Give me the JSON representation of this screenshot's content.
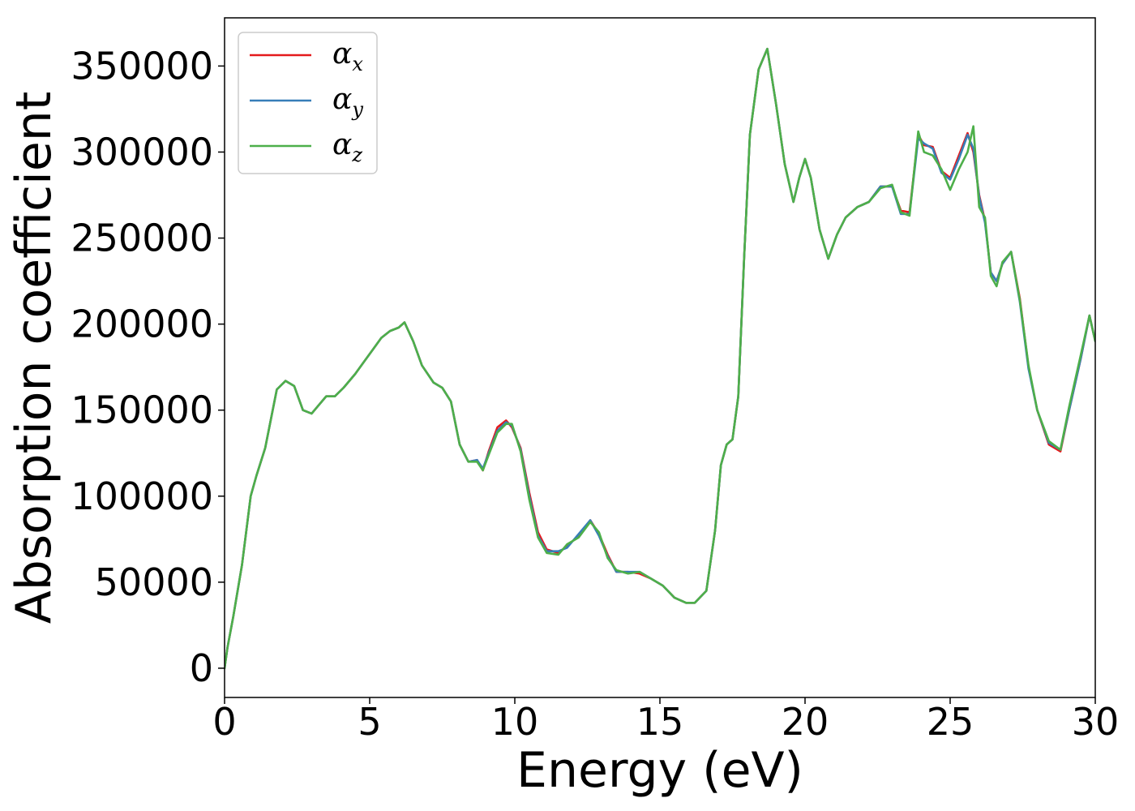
{
  "chart_data": {
    "type": "line",
    "title": "",
    "xlabel": "Energy (eV)",
    "ylabel": "Absorption coefficient",
    "xlim": [
      0,
      30
    ],
    "ylim": [
      -17000,
      378000
    ],
    "xticks": [
      0,
      5,
      10,
      15,
      20,
      25,
      30
    ],
    "yticks": [
      0,
      50000,
      100000,
      150000,
      200000,
      250000,
      300000,
      350000
    ],
    "grid": false,
    "legend_position": "top-left",
    "series": [
      {
        "name": "α_x",
        "legend_symbol": "α",
        "legend_sub": "x",
        "color": "#e41a1c",
        "x": [
          0,
          0.1,
          0.3,
          0.6,
          0.9,
          1.1,
          1.4,
          1.8,
          2.1,
          2.4,
          2.7,
          3.0,
          3.2,
          3.5,
          3.8,
          4.1,
          4.5,
          4.8,
          5.1,
          5.4,
          5.7,
          6.0,
          6.2,
          6.5,
          6.8,
          7.2,
          7.5,
          7.8,
          8.1,
          8.4,
          8.7,
          8.9,
          9.1,
          9.4,
          9.7,
          9.9,
          10.2,
          10.5,
          10.8,
          11.1,
          11.5,
          11.8,
          12.2,
          12.6,
          12.9,
          13.2,
          13.5,
          13.9,
          14.3,
          14.7,
          15.1,
          15.5,
          15.9,
          16.2,
          16.6,
          16.9,
          17.1,
          17.3,
          17.5,
          17.7,
          17.9,
          18.1,
          18.4,
          18.7,
          19.0,
          19.3,
          19.6,
          19.8,
          20.0,
          20.2,
          20.5,
          20.8,
          21.1,
          21.4,
          21.8,
          22.2,
          22.6,
          23.0,
          23.3,
          23.6,
          23.9,
          24.1,
          24.4,
          24.7,
          25.0,
          25.3,
          25.6,
          25.8,
          26.0,
          26.2,
          26.4,
          26.6,
          26.8,
          27.1,
          27.4,
          27.7,
          28.0,
          28.4,
          28.8,
          29.1,
          29.5,
          29.8,
          30.0
        ],
        "y": [
          0,
          12000,
          30000,
          60000,
          100000,
          112000,
          128000,
          162000,
          167000,
          164000,
          150000,
          148000,
          152000,
          158000,
          158000,
          163000,
          171000,
          178000,
          185000,
          192000,
          196000,
          198000,
          201000,
          190000,
          176000,
          166000,
          163000,
          155000,
          130000,
          120000,
          121000,
          115000,
          126000,
          140000,
          144000,
          140000,
          128000,
          102000,
          79000,
          69000,
          67000,
          71000,
          77000,
          86000,
          78000,
          66000,
          56000,
          56000,
          55000,
          52000,
          48000,
          41000,
          38000,
          38000,
          45000,
          80000,
          118000,
          130000,
          133000,
          158000,
          238000,
          310000,
          348000,
          360000,
          328000,
          293000,
          271000,
          285000,
          296000,
          285000,
          255000,
          238000,
          252000,
          262000,
          268000,
          271000,
          280000,
          280000,
          266000,
          265000,
          310000,
          304000,
          303000,
          289000,
          285000,
          298000,
          311000,
          300000,
          275000,
          260000,
          230000,
          225000,
          235000,
          242000,
          215000,
          175000,
          150000,
          130000,
          126000,
          150000,
          180000,
          205000,
          190000
        ]
      },
      {
        "name": "α_y",
        "legend_symbol": "α",
        "legend_sub": "y",
        "color": "#377eb8",
        "x": [
          0,
          0.1,
          0.3,
          0.6,
          0.9,
          1.1,
          1.4,
          1.8,
          2.1,
          2.4,
          2.7,
          3.0,
          3.2,
          3.5,
          3.8,
          4.1,
          4.5,
          4.8,
          5.1,
          5.4,
          5.7,
          6.0,
          6.2,
          6.5,
          6.8,
          7.2,
          7.5,
          7.8,
          8.1,
          8.4,
          8.7,
          8.9,
          9.1,
          9.4,
          9.7,
          9.9,
          10.2,
          10.5,
          10.8,
          11.1,
          11.5,
          11.8,
          12.2,
          12.6,
          12.9,
          13.2,
          13.5,
          13.9,
          14.3,
          14.7,
          15.1,
          15.5,
          15.9,
          16.2,
          16.6,
          16.9,
          17.1,
          17.3,
          17.5,
          17.7,
          17.9,
          18.1,
          18.4,
          18.7,
          19.0,
          19.3,
          19.6,
          19.8,
          20.0,
          20.2,
          20.5,
          20.8,
          21.1,
          21.4,
          21.8,
          22.2,
          22.6,
          23.0,
          23.3,
          23.6,
          23.9,
          24.1,
          24.4,
          24.7,
          25.0,
          25.3,
          25.6,
          25.8,
          26.0,
          26.2,
          26.4,
          26.6,
          26.8,
          27.1,
          27.4,
          27.7,
          28.0,
          28.4,
          28.8,
          29.1,
          29.5,
          29.8,
          30.0
        ],
        "y": [
          0,
          12000,
          30000,
          60000,
          100000,
          112000,
          128000,
          162000,
          167000,
          164000,
          150000,
          148000,
          152000,
          158000,
          158000,
          163000,
          171000,
          178000,
          185000,
          192000,
          196000,
          198000,
          201000,
          190000,
          176000,
          166000,
          163000,
          155000,
          130000,
          120000,
          121000,
          116000,
          125000,
          138000,
          143000,
          141000,
          127000,
          100000,
          77000,
          68000,
          68000,
          70000,
          78000,
          86000,
          77000,
          65000,
          56000,
          56000,
          56000,
          52000,
          48000,
          41000,
          38000,
          38000,
          45000,
          80000,
          118000,
          130000,
          133000,
          158000,
          238000,
          310000,
          348000,
          360000,
          328000,
          293000,
          271000,
          285000,
          296000,
          285000,
          255000,
          238000,
          252000,
          262000,
          268000,
          271000,
          280000,
          280000,
          264000,
          264000,
          308000,
          305000,
          302000,
          288000,
          284000,
          296000,
          310000,
          302000,
          274000,
          259000,
          230000,
          225000,
          235000,
          242000,
          213000,
          174000,
          150000,
          131000,
          127000,
          150000,
          180000,
          205000,
          190000
        ]
      },
      {
        "name": "α_z",
        "legend_symbol": "α",
        "legend_sub": "z",
        "color": "#4daf4a",
        "x": [
          0,
          0.1,
          0.3,
          0.6,
          0.9,
          1.1,
          1.4,
          1.8,
          2.1,
          2.4,
          2.7,
          3.0,
          3.2,
          3.5,
          3.8,
          4.1,
          4.5,
          4.8,
          5.1,
          5.4,
          5.7,
          6.0,
          6.2,
          6.5,
          6.8,
          7.2,
          7.5,
          7.8,
          8.1,
          8.4,
          8.7,
          8.9,
          9.1,
          9.4,
          9.7,
          9.9,
          10.2,
          10.5,
          10.8,
          11.1,
          11.5,
          11.8,
          12.2,
          12.6,
          12.9,
          13.2,
          13.5,
          13.9,
          14.3,
          14.7,
          15.1,
          15.5,
          15.9,
          16.2,
          16.6,
          16.9,
          17.1,
          17.3,
          17.5,
          17.7,
          17.9,
          18.1,
          18.4,
          18.7,
          19.0,
          19.3,
          19.6,
          19.8,
          20.0,
          20.2,
          20.5,
          20.8,
          21.1,
          21.4,
          21.8,
          22.2,
          22.6,
          23.0,
          23.3,
          23.6,
          23.9,
          24.1,
          24.4,
          24.7,
          25.0,
          25.3,
          25.6,
          25.8,
          26.0,
          26.2,
          26.4,
          26.6,
          26.8,
          27.1,
          27.4,
          27.7,
          28.0,
          28.4,
          28.8,
          29.1,
          29.5,
          29.8,
          30.0
        ],
        "y": [
          0,
          12000,
          30000,
          60000,
          100000,
          112000,
          128000,
          162000,
          167000,
          164000,
          150000,
          148000,
          152000,
          158000,
          158000,
          163000,
          171000,
          178000,
          185000,
          192000,
          196000,
          198000,
          201000,
          190000,
          176000,
          166000,
          163000,
          155000,
          130000,
          120000,
          120000,
          115000,
          124000,
          137000,
          142000,
          142000,
          126000,
          98000,
          76000,
          67000,
          66000,
          72000,
          76000,
          85000,
          79000,
          64000,
          57000,
          55000,
          56000,
          52000,
          48000,
          41000,
          38000,
          38000,
          45000,
          80000,
          118000,
          130000,
          133000,
          158000,
          238000,
          310000,
          348000,
          360000,
          328000,
          293000,
          271000,
          285000,
          296000,
          285000,
          255000,
          238000,
          252000,
          262000,
          268000,
          271000,
          279000,
          281000,
          265000,
          263000,
          312000,
          300000,
          298000,
          290000,
          278000,
          290000,
          300000,
          315000,
          268000,
          262000,
          228000,
          222000,
          236000,
          242000,
          214000,
          176000,
          150000,
          132000,
          127000,
          152000,
          182000,
          205000,
          190000
        ]
      }
    ]
  }
}
